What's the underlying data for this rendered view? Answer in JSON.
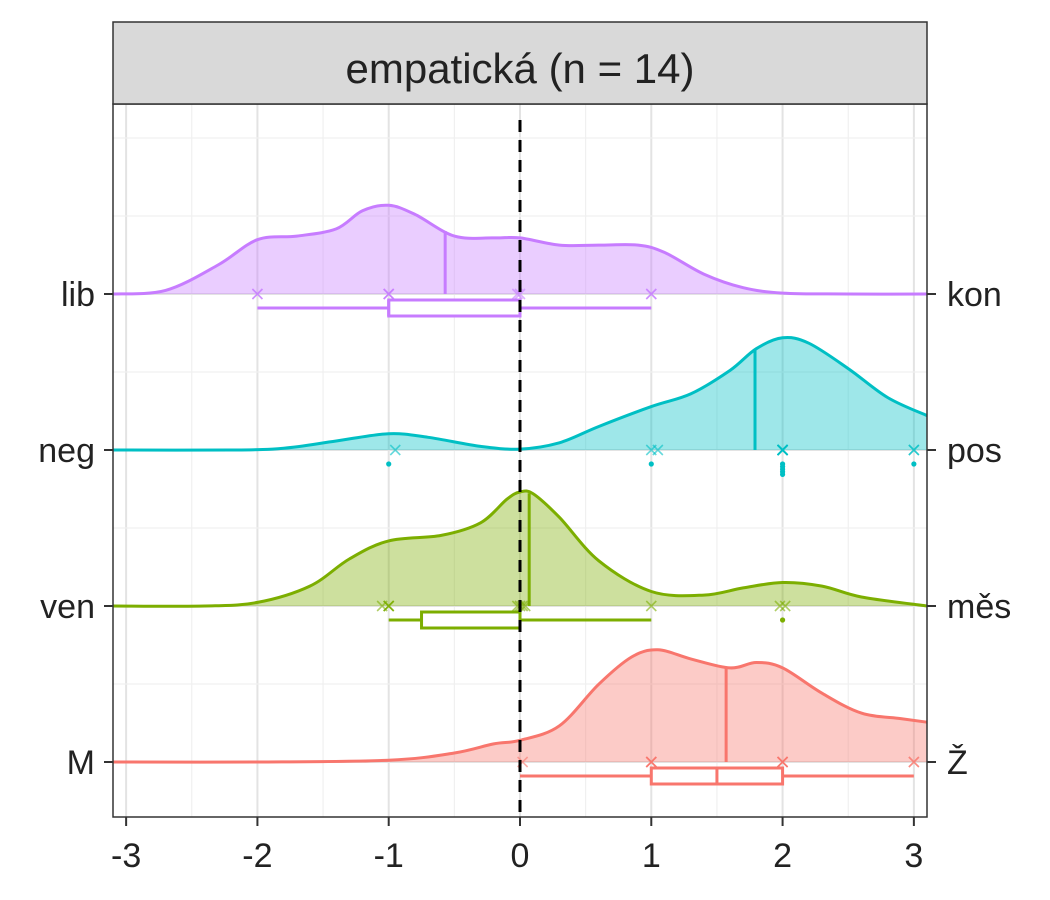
{
  "chart_data": {
    "type": "ridgeline",
    "title": "empatická (n = 14)",
    "xlabel": "",
    "ylabel": "",
    "xlim": [
      -3.1,
      3.1
    ],
    "x_ticks": [
      "-3",
      "-2",
      "-1",
      "0",
      "1",
      "2",
      "3"
    ],
    "reference_line_x": 0,
    "grid": true,
    "rows": [
      {
        "left_label": "lib",
        "right_label": "kon",
        "color": "#C77CFF",
        "density": [
          [
            -3.1,
            0.0
          ],
          [
            -2.7,
            0.04
          ],
          [
            -2.3,
            0.32
          ],
          [
            -2.0,
            0.6
          ],
          [
            -1.7,
            0.64
          ],
          [
            -1.4,
            0.72
          ],
          [
            -1.2,
            0.92
          ],
          [
            -1.0,
            0.98
          ],
          [
            -0.8,
            0.88
          ],
          [
            -0.5,
            0.64
          ],
          [
            -0.2,
            0.62
          ],
          [
            0.0,
            0.62
          ],
          [
            0.3,
            0.54
          ],
          [
            0.6,
            0.54
          ],
          [
            0.9,
            0.54
          ],
          [
            1.1,
            0.46
          ],
          [
            1.4,
            0.22
          ],
          [
            1.7,
            0.07
          ],
          [
            2.0,
            0.01
          ],
          [
            2.5,
            0.0
          ],
          [
            3.1,
            0.0
          ]
        ],
        "mean": -0.57,
        "points": [
          -2,
          -2,
          -1,
          -1,
          -1,
          -0.02,
          0,
          1,
          1
        ],
        "box": {
          "whisker_low": -2,
          "q1": -1,
          "median": -1,
          "q3": 0,
          "whisker_high": 1
        }
      },
      {
        "left_label": "neg",
        "right_label": "pos",
        "color": "#00BFC4",
        "density": [
          [
            -3.1,
            0.0
          ],
          [
            -2.2,
            0.0
          ],
          [
            -1.8,
            0.02
          ],
          [
            -1.4,
            0.1
          ],
          [
            -1.0,
            0.18
          ],
          [
            -0.7,
            0.14
          ],
          [
            -0.3,
            0.04
          ],
          [
            0.0,
            0.01
          ],
          [
            0.3,
            0.08
          ],
          [
            0.6,
            0.26
          ],
          [
            1.0,
            0.48
          ],
          [
            1.3,
            0.62
          ],
          [
            1.6,
            0.88
          ],
          [
            1.8,
            1.12
          ],
          [
            2.0,
            1.24
          ],
          [
            2.2,
            1.18
          ],
          [
            2.5,
            0.9
          ],
          [
            2.8,
            0.58
          ],
          [
            3.1,
            0.38
          ]
        ],
        "mean": 1.79,
        "points": [
          -0.95,
          1,
          1.05,
          2,
          2,
          2,
          2,
          2,
          2,
          2,
          2,
          2,
          3,
          3
        ],
        "outliers": [
          -1,
          1,
          2,
          2,
          2,
          2,
          2,
          3
        ]
      },
      {
        "left_label": "ven",
        "right_label": "měs",
        "color": "#7CAE00",
        "density": [
          [
            -3.1,
            0.0
          ],
          [
            -2.4,
            0.0
          ],
          [
            -2.0,
            0.04
          ],
          [
            -1.6,
            0.22
          ],
          [
            -1.3,
            0.52
          ],
          [
            -1.0,
            0.72
          ],
          [
            -0.6,
            0.78
          ],
          [
            -0.3,
            0.92
          ],
          [
            -0.1,
            1.18
          ],
          [
            0.0,
            1.26
          ],
          [
            0.1,
            1.24
          ],
          [
            0.3,
            0.98
          ],
          [
            0.6,
            0.5
          ],
          [
            1.0,
            0.16
          ],
          [
            1.4,
            0.12
          ],
          [
            1.7,
            0.2
          ],
          [
            2.0,
            0.26
          ],
          [
            2.3,
            0.22
          ],
          [
            2.6,
            0.1
          ],
          [
            3.1,
            0.0
          ]
        ],
        "mean": 0.07,
        "points": [
          -1.05,
          -1,
          -1,
          -1,
          -0.02,
          0,
          0.02,
          0.04,
          1,
          1.98,
          2.02
        ],
        "outliers": [
          2
        ],
        "box": {
          "whisker_low": -1,
          "q1": -0.75,
          "median": 0,
          "q3": 0,
          "whisker_high": 1
        }
      },
      {
        "left_label": "M",
        "right_label": "Ž",
        "color": "#F8766D",
        "density": [
          [
            -3.1,
            0.0
          ],
          [
            -2.0,
            0.0
          ],
          [
            -1.0,
            0.02
          ],
          [
            -0.5,
            0.1
          ],
          [
            -0.2,
            0.2
          ],
          [
            0.0,
            0.24
          ],
          [
            0.3,
            0.4
          ],
          [
            0.6,
            0.86
          ],
          [
            0.85,
            1.16
          ],
          [
            1.05,
            1.24
          ],
          [
            1.3,
            1.14
          ],
          [
            1.6,
            1.04
          ],
          [
            1.8,
            1.1
          ],
          [
            2.0,
            1.04
          ],
          [
            2.3,
            0.76
          ],
          [
            2.6,
            0.54
          ],
          [
            2.9,
            0.48
          ],
          [
            3.1,
            0.44
          ]
        ],
        "mean": 1.57,
        "points": [
          0.02,
          1,
          1,
          1,
          1,
          2,
          2,
          2,
          2,
          3,
          3
        ],
        "box": {
          "whisker_low": 0,
          "q1": 1,
          "median": 1.5,
          "q3": 2,
          "whisker_high": 3
        }
      }
    ]
  }
}
